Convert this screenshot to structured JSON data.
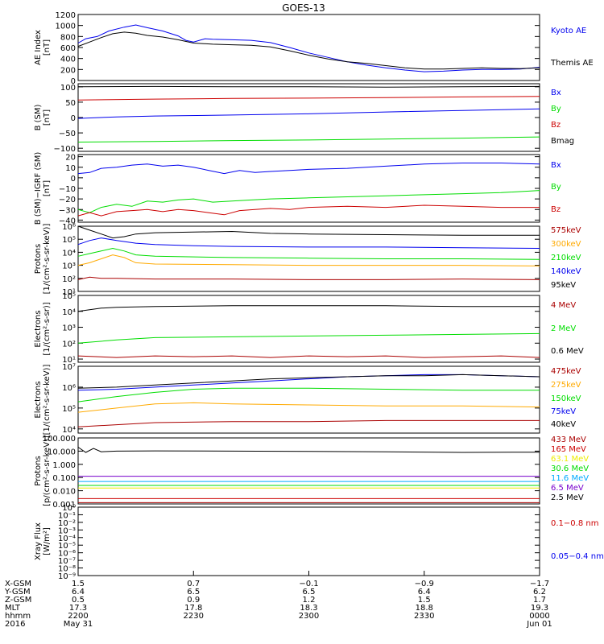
{
  "title": "GOES-13",
  "colors": {
    "black": "#000000",
    "blue": "#0000ee",
    "green": "#00dd00",
    "red": "#cc0000",
    "orange": "#ffaa00",
    "darkred": "#aa0000",
    "yellow": "#eeee00",
    "lightblue": "#00aaff",
    "purple": "#7700cc"
  },
  "chart_data": [
    {
      "id": "ae",
      "type": "line",
      "ylabel": "AE Index\n[nT]",
      "yscale": "linear",
      "ylim": [
        0,
        1200
      ],
      "yticks": [
        "0",
        "200",
        "400",
        "600",
        "800",
        "1000",
        "1200"
      ],
      "xlim": [
        0,
        120
      ],
      "series": [
        {
          "name": "Kyoto AE",
          "color": "blue",
          "x": [
            0,
            2,
            5,
            8,
            12,
            15,
            18,
            22,
            26,
            28,
            30,
            33,
            35,
            40,
            45,
            50,
            55,
            60,
            65,
            70,
            75,
            80,
            85,
            90,
            95,
            100,
            105,
            110,
            115,
            120
          ],
          "y": [
            680,
            760,
            800,
            900,
            970,
            1010,
            960,
            900,
            810,
            730,
            700,
            760,
            750,
            740,
            730,
            690,
            600,
            500,
            420,
            340,
            280,
            230,
            190,
            160,
            170,
            190,
            200,
            200,
            210,
            240
          ]
        },
        {
          "name": "Themis AE",
          "color": "black",
          "x": [
            0,
            3,
            6,
            9,
            12,
            15,
            18,
            22,
            26,
            30,
            35,
            40,
            45,
            50,
            55,
            60,
            65,
            70,
            75,
            80,
            85,
            90,
            95,
            100,
            105,
            110,
            115,
            120
          ],
          "y": [
            620,
            700,
            780,
            850,
            880,
            860,
            820,
            790,
            740,
            680,
            660,
            650,
            640,
            610,
            540,
            460,
            390,
            340,
            310,
            270,
            230,
            210,
            210,
            220,
            230,
            220,
            215,
            230
          ]
        }
      ]
    },
    {
      "id": "bsm",
      "type": "line",
      "ylabel": "B (SM)\n[nT]",
      "yscale": "linear",
      "ylim": [
        -110,
        110
      ],
      "yticks": [
        "−100",
        "−50",
        "0",
        "50",
        "100"
      ],
      "xlim": [
        0,
        120
      ],
      "series": [
        {
          "name": "Bx",
          "color": "blue",
          "x": [
            0,
            10,
            20,
            40,
            60,
            80,
            100,
            120
          ],
          "y": [
            -3,
            2,
            5,
            8,
            12,
            18,
            23,
            28
          ]
        },
        {
          "name": "By",
          "color": "green",
          "x": [
            0,
            20,
            40,
            60,
            80,
            100,
            120
          ],
          "y": [
            -80,
            -78,
            -75,
            -73,
            -70,
            -67,
            -63
          ]
        },
        {
          "name": "Bz",
          "color": "red",
          "x": [
            0,
            20,
            40,
            60,
            80,
            100,
            120
          ],
          "y": [
            57,
            60,
            62,
            63,
            65,
            67,
            69
          ]
        },
        {
          "name": "Bmag",
          "color": "black",
          "x": [
            0,
            20,
            40,
            60,
            80,
            100,
            120
          ],
          "y": [
            100,
            101,
            100,
            100,
            99,
            100,
            101
          ]
        }
      ]
    },
    {
      "id": "bigrf",
      "type": "line",
      "ylabel": "B (SM)−IGRF (SM)\n[nT]",
      "yscale": "linear",
      "ylim": [
        -42,
        22
      ],
      "yticks": [
        "−40",
        "−30",
        "−20",
        "−10",
        "0",
        "10",
        "20"
      ],
      "xlim": [
        0,
        120
      ],
      "series": [
        {
          "name": "Bx",
          "color": "blue",
          "x": [
            0,
            3,
            6,
            10,
            14,
            18,
            22,
            26,
            30,
            34,
            38,
            42,
            46,
            50,
            55,
            60,
            70,
            80,
            90,
            100,
            110,
            120
          ],
          "y": [
            4,
            5,
            9,
            10,
            12,
            13,
            11,
            12,
            10,
            7,
            4,
            7,
            5,
            6,
            7,
            8,
            9,
            11,
            13,
            14,
            14,
            13
          ]
        },
        {
          "name": "By",
          "color": "green",
          "x": [
            0,
            3,
            6,
            10,
            14,
            18,
            22,
            26,
            30,
            35,
            40,
            45,
            50,
            60,
            70,
            80,
            90,
            100,
            110,
            120
          ],
          "y": [
            -30,
            -33,
            -28,
            -25,
            -27,
            -22,
            -23,
            -21,
            -20,
            -23,
            -22,
            -21,
            -20,
            -19,
            -18,
            -17,
            -16,
            -15,
            -14,
            -12
          ]
        },
        {
          "name": "Bz",
          "color": "red",
          "x": [
            0,
            3,
            6,
            10,
            14,
            18,
            22,
            26,
            30,
            34,
            38,
            42,
            46,
            50,
            55,
            60,
            70,
            80,
            90,
            100,
            110,
            120
          ],
          "y": [
            -36,
            -33,
            -36,
            -32,
            -31,
            -30,
            -32,
            -30,
            -31,
            -33,
            -35,
            -31,
            -30,
            -29,
            -30,
            -28,
            -27,
            -28,
            -26,
            -27,
            -28,
            -28
          ]
        }
      ]
    },
    {
      "id": "protons_lo",
      "type": "line",
      "ylabel": "Protons\n[1/(cm²-s-sr-keV)]",
      "yscale": "log",
      "ylim": [
        1,
        6
      ],
      "yticks": [
        "10¹",
        "10²",
        "10³",
        "10⁴",
        "10⁵",
        "10⁶"
      ],
      "xlim": [
        0,
        120
      ],
      "series": [
        {
          "name": "575keV",
          "color": "darkred",
          "x": [
            0,
            3,
            6,
            10,
            20,
            40,
            60,
            80,
            100,
            120
          ],
          "y": [
            1.9,
            2.1,
            2.0,
            2.0,
            1.95,
            1.95,
            1.9,
            1.9,
            1.95,
            1.9
          ]
        },
        {
          "name": "300keV",
          "color": "orange",
          "x": [
            0,
            3,
            6,
            9,
            12,
            15,
            20,
            40,
            60,
            80,
            100,
            120
          ],
          "y": [
            3.0,
            3.2,
            3.5,
            3.8,
            3.6,
            3.2,
            3.1,
            3.05,
            3.0,
            3.0,
            3.0,
            2.95
          ]
        },
        {
          "name": "210keV",
          "color": "green",
          "x": [
            0,
            3,
            6,
            9,
            12,
            15,
            20,
            40,
            60,
            80,
            100,
            120
          ],
          "y": [
            3.7,
            3.9,
            4.1,
            4.3,
            4.1,
            3.8,
            3.7,
            3.6,
            3.55,
            3.5,
            3.5,
            3.45
          ]
        },
        {
          "name": "140keV",
          "color": "blue",
          "x": [
            0,
            3,
            6,
            10,
            15,
            20,
            30,
            40,
            60,
            80,
            100,
            120
          ],
          "y": [
            4.6,
            4.9,
            5.1,
            4.9,
            4.7,
            4.6,
            4.5,
            4.45,
            4.4,
            4.4,
            4.35,
            4.3
          ]
        },
        {
          "name": "95keV",
          "color": "black",
          "x": [
            0,
            3,
            6,
            9,
            12,
            15,
            20,
            30,
            40,
            50,
            60,
            80,
            100,
            120
          ],
          "y": [
            6.0,
            5.7,
            5.4,
            5.1,
            5.2,
            5.4,
            5.5,
            5.55,
            5.6,
            5.45,
            5.4,
            5.35,
            5.3,
            5.3
          ]
        }
      ]
    },
    {
      "id": "electrons_hi",
      "type": "line",
      "ylabel": "Electrons\n[1/(cm²-s-sr)]",
      "yscale": "log",
      "ylim": [
        0.8,
        5
      ],
      "yticks": [
        "10¹",
        "10²",
        "10³",
        "10⁴",
        "10⁵"
      ],
      "xlim": [
        0,
        120
      ],
      "series": [
        {
          "name": "4 MeV",
          "color": "darkred",
          "x": [
            0,
            10,
            20,
            30,
            40,
            50,
            60,
            70,
            80,
            90,
            100,
            110,
            120
          ],
          "y": [
            1.2,
            1.1,
            1.2,
            1.15,
            1.2,
            1.1,
            1.2,
            1.15,
            1.2,
            1.1,
            1.15,
            1.2,
            1.1
          ]
        },
        {
          "name": "2 MeV",
          "color": "green",
          "x": [
            0,
            10,
            20,
            40,
            60,
            80,
            100,
            120
          ],
          "y": [
            2.0,
            2.2,
            2.35,
            2.4,
            2.45,
            2.5,
            2.55,
            2.6
          ]
        },
        {
          "name": "0.6 MeV",
          "color": "black",
          "x": [
            0,
            3,
            6,
            10,
            20,
            40,
            60,
            80,
            100,
            120
          ],
          "y": [
            4.0,
            4.1,
            4.2,
            4.25,
            4.3,
            4.35,
            4.35,
            4.35,
            4.3,
            4.3
          ]
        }
      ]
    },
    {
      "id": "electrons_lo",
      "type": "line",
      "ylabel": "Electrons\n[1/(cm²-s-sr-keV)]",
      "yscale": "log",
      "ylim": [
        3.8,
        7
      ],
      "yticks": [
        "10⁴",
        "10⁵",
        "10⁶",
        "10⁷"
      ],
      "xlim": [
        0,
        120
      ],
      "series": [
        {
          "name": "475keV",
          "color": "darkred",
          "x": [
            0,
            10,
            20,
            40,
            60,
            80,
            100,
            120
          ],
          "y": [
            4.1,
            4.2,
            4.3,
            4.35,
            4.35,
            4.4,
            4.4,
            4.4
          ]
        },
        {
          "name": "275keV",
          "color": "orange",
          "x": [
            0,
            10,
            20,
            30,
            40,
            60,
            80,
            100,
            120
          ],
          "y": [
            4.8,
            5.0,
            5.2,
            5.25,
            5.2,
            5.15,
            5.1,
            5.1,
            5.05
          ]
        },
        {
          "name": "150keV",
          "color": "green",
          "x": [
            0,
            10,
            20,
            30,
            40,
            50,
            60,
            80,
            100,
            120
          ],
          "y": [
            5.3,
            5.55,
            5.75,
            5.9,
            5.95,
            5.95,
            5.95,
            5.9,
            5.85,
            5.85
          ]
        },
        {
          "name": "75keV",
          "color": "blue",
          "x": [
            0,
            10,
            20,
            30,
            40,
            50,
            60,
            70,
            80,
            90,
            100,
            110,
            120
          ],
          "y": [
            5.85,
            5.9,
            6.0,
            6.1,
            6.2,
            6.3,
            6.4,
            6.5,
            6.55,
            6.6,
            6.6,
            6.55,
            6.5
          ]
        },
        {
          "name": "40keV",
          "color": "black",
          "x": [
            0,
            10,
            20,
            30,
            40,
            50,
            60,
            70,
            80,
            90,
            100,
            110,
            120
          ],
          "y": [
            5.95,
            6.0,
            6.1,
            6.2,
            6.3,
            6.4,
            6.45,
            6.5,
            6.55,
            6.55,
            6.6,
            6.55,
            6.5
          ]
        }
      ]
    },
    {
      "id": "protons_hi",
      "type": "line",
      "ylabel": "Protons\n[p/(cm²-s-sr-keV)]",
      "yscale": "log",
      "ylim": [
        -3,
        2
      ],
      "yticks": [
        "0.001",
        "0.010",
        "0.100",
        "1.000",
        "10.000",
        "100.000"
      ],
      "xlim": [
        0,
        120
      ],
      "series": [
        {
          "name": "433 MeV",
          "color": "darkred",
          "x": [
            0,
            120
          ],
          "y": [
            -2.9,
            -2.9
          ]
        },
        {
          "name": "165 MeV",
          "color": "red",
          "x": [
            0,
            120
          ],
          "y": [
            -2.6,
            -2.6
          ]
        },
        {
          "name": "63.1 MeV",
          "color": "yellow",
          "x": [
            0,
            120
          ],
          "y": [
            -1.8,
            -1.8
          ]
        },
        {
          "name": "30.6 MeV",
          "color": "green",
          "x": [
            0,
            120
          ],
          "y": [
            -1.6,
            -1.6
          ]
        },
        {
          "name": "11.6 MeV",
          "color": "lightblue",
          "x": [
            0,
            120
          ],
          "y": [
            -1.3,
            -1.3
          ]
        },
        {
          "name": "6.5 MeV",
          "color": "purple",
          "x": [
            0,
            120
          ],
          "y": [
            -0.9,
            -0.9
          ]
        },
        {
          "name": "2.5 MeV",
          "color": "black",
          "x": [
            0,
            2,
            4,
            6,
            10,
            20,
            40,
            60,
            80,
            100,
            120
          ],
          "y": [
            1.3,
            0.9,
            1.2,
            0.95,
            1.0,
            1.02,
            1.0,
            0.98,
            0.95,
            0.9,
            0.92
          ]
        }
      ]
    },
    {
      "id": "xray",
      "type": "line",
      "ylabel": "Xray Flux\n[W/m²]",
      "yscale": "log",
      "ylim": [
        -9,
        0
      ],
      "yticks": [
        "10⁻⁹",
        "10⁻⁸",
        "10⁻⁷",
        "10⁻⁶",
        "10⁻⁵",
        "10⁻⁴",
        "10⁻³",
        "10⁻²",
        "10⁻¹",
        "10⁰"
      ],
      "xlim": [
        0,
        120
      ],
      "series": [
        {
          "name": "0.1−0.8 nm",
          "color": "red",
          "x": [],
          "y": []
        },
        {
          "name": "0.05−0.4 nm",
          "color": "blue",
          "x": [],
          "y": []
        }
      ]
    }
  ],
  "xaxis": {
    "row_labels": [
      "X-GSM",
      "Y-GSM",
      "Z-GSM",
      "MLT",
      "hhmm",
      "2016"
    ],
    "columns": [
      {
        "x": 0,
        "values": [
          "1.5",
          "6.4",
          "0.5",
          "17.3",
          "2200",
          "May 31"
        ]
      },
      {
        "x": 30,
        "values": [
          "0.7",
          "6.5",
          "0.9",
          "17.8",
          "2230",
          ""
        ]
      },
      {
        "x": 60,
        "values": [
          "−0.1",
          "6.5",
          "1.2",
          "18.3",
          "2300",
          ""
        ]
      },
      {
        "x": 90,
        "values": [
          "−0.9",
          "6.4",
          "1.5",
          "18.8",
          "2330",
          ""
        ]
      },
      {
        "x": 120,
        "values": [
          "−1.7",
          "6.2",
          "1.7",
          "19.3",
          "0000",
          "Jun 01"
        ]
      }
    ]
  }
}
